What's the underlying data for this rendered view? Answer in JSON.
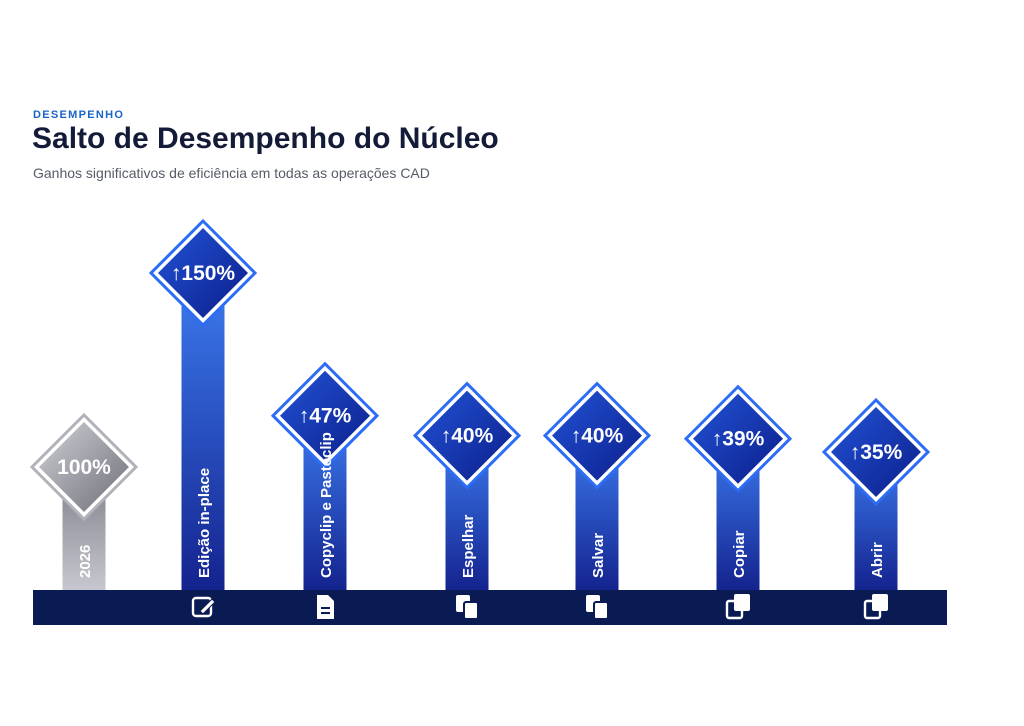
{
  "header": {
    "eyebrow": "DESEMPENHO",
    "title": "Salto de Desempenho do Núcleo",
    "subtitle": "Ganhos significativos de eficiência em todas as operações CAD"
  },
  "chart_data": {
    "type": "bar",
    "categories": [
      "2026",
      "Edição in-place",
      "Copyclip e Pasteclip",
      "Espelhar",
      "Salvar",
      "Copiar",
      "Abrir"
    ],
    "values": [
      100,
      150,
      47,
      40,
      40,
      39,
      35
    ],
    "labels": [
      "100%",
      "↑150%",
      "↑47%",
      "↑40%",
      "↑40%",
      "↑39%",
      "↑35%"
    ],
    "icons": [
      "",
      "edit-icon",
      "document-icon",
      "files-icon",
      "files-icon",
      "copy-icon",
      "copy-icon"
    ],
    "colors": {
      "baseline": "#8e8e98",
      "bar": "#1a3bb8",
      "bar_light": "#3d7cf0",
      "diamond": "#1433b0",
      "diamond_border": "#2d6df6",
      "axis_band": "#0a1a52",
      "text": "#ffffff"
    }
  }
}
